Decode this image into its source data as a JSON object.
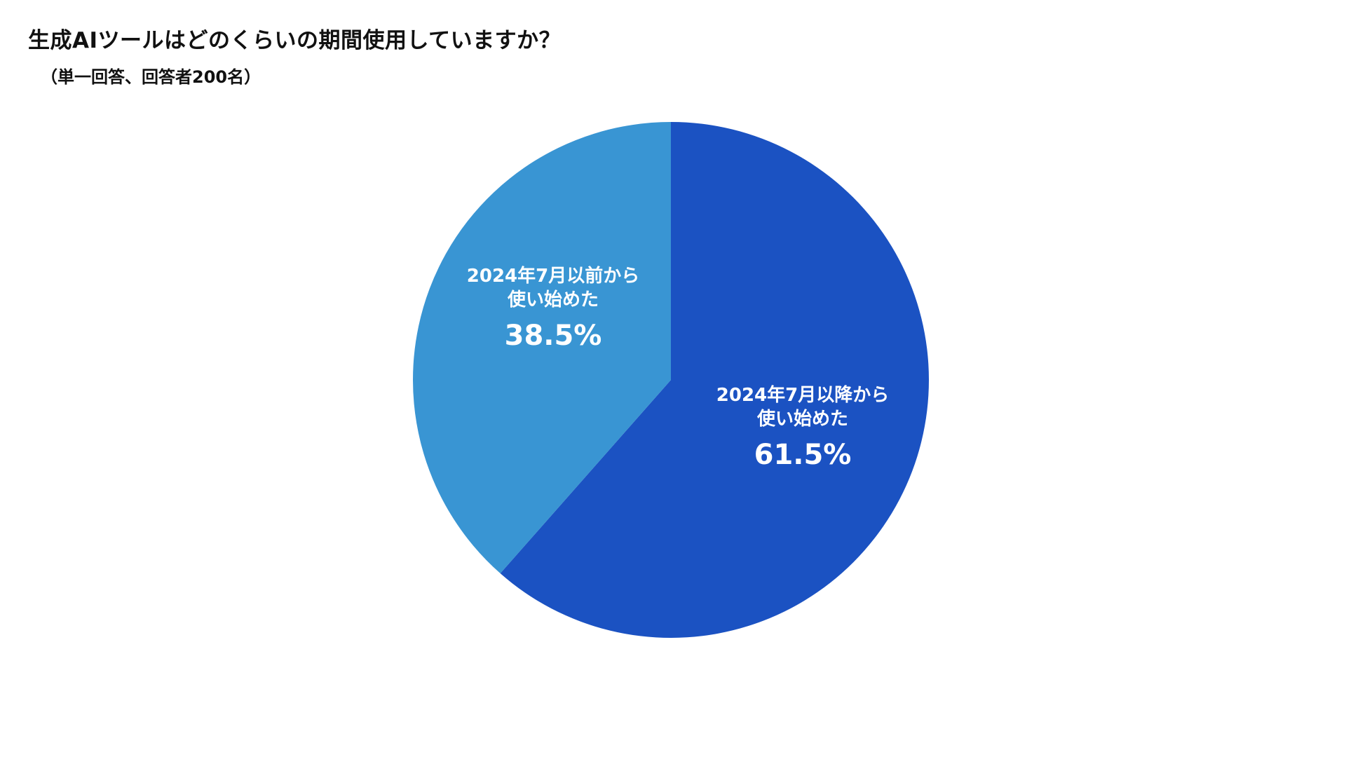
{
  "chart_data": {
    "type": "pie",
    "title": "生成AIツールはどのくらいの期間使用していますか？",
    "subtitle": "（単一回答、回答者200名）",
    "slices": [
      {
        "label_lines": [
          "2024年7月以降から",
          "使い始めた"
        ],
        "value": 61.5,
        "value_label": "61.5%",
        "color": "#1b52c2"
      },
      {
        "label_lines": [
          "2024年7月以前から",
          "使い始めた"
        ],
        "value": 38.5,
        "value_label": "38.5%",
        "color": "#3995d3"
      }
    ],
    "start": "12 o'clock",
    "direction": "clockwise",
    "legend": "none"
  }
}
